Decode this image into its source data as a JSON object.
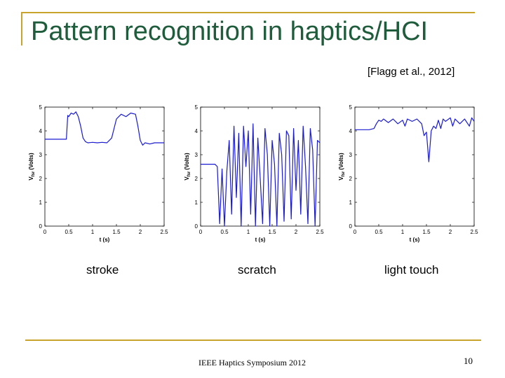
{
  "slide": {
    "title": "Pattern recognition in haptics/HCI",
    "citation": "[Flagg et al., 2012]",
    "footer": "IEEE Haptics Symposium 2012",
    "page_number": "10",
    "accent_color": "#c8a42c",
    "title_color": "#1f5c3c"
  },
  "captions": [
    "stroke",
    "scratch",
    "light touch"
  ],
  "chart_data": [
    {
      "type": "line",
      "xlabel": "t (s)",
      "ylabel": "V",
      "ylabel_sub": "fsr",
      "ylabel_unit": "(Volts)",
      "xlim": [
        0,
        2.5
      ],
      "ylim": [
        0,
        5
      ],
      "xticks": [
        "0",
        "0.5",
        "1",
        "1.5",
        "2",
        "2.5"
      ],
      "yticks": [
        "0",
        "1",
        "2",
        "3",
        "4",
        "5"
      ],
      "line_color": "#1a1ad0",
      "x": [
        0,
        0.45,
        0.48,
        0.5,
        0.55,
        0.6,
        0.65,
        0.7,
        0.75,
        0.8,
        0.85,
        0.9,
        1.0,
        1.1,
        1.2,
        1.3,
        1.4,
        1.45,
        1.5,
        1.55,
        1.6,
        1.7,
        1.8,
        1.9,
        1.95,
        2.0,
        2.05,
        2.1,
        2.2,
        2.3,
        2.4,
        2.5
      ],
      "y": [
        3.65,
        3.65,
        4.65,
        4.6,
        4.75,
        4.7,
        4.8,
        4.6,
        4.2,
        3.7,
        3.55,
        3.5,
        3.52,
        3.5,
        3.52,
        3.5,
        3.7,
        4.1,
        4.5,
        4.6,
        4.7,
        4.6,
        4.75,
        4.7,
        4.2,
        3.6,
        3.4,
        3.5,
        3.45,
        3.5,
        3.5,
        3.5
      ]
    },
    {
      "type": "line",
      "xlabel": "t (s)",
      "ylabel": "V",
      "ylabel_sub": "fsr",
      "ylabel_unit": "(Volts)",
      "xlim": [
        0,
        2.5
      ],
      "ylim": [
        0,
        5
      ],
      "xticks": [
        "0",
        "0.5",
        "1",
        "1.5",
        "2",
        "2.5"
      ],
      "yticks": [
        "0",
        "1",
        "2",
        "3",
        "4",
        "5"
      ],
      "line_color": "#1a1ad0",
      "x": [
        0,
        0.3,
        0.35,
        0.4,
        0.45,
        0.5,
        0.55,
        0.6,
        0.65,
        0.7,
        0.75,
        0.8,
        0.85,
        0.9,
        0.95,
        1.0,
        1.05,
        1.1,
        1.15,
        1.2,
        1.25,
        1.3,
        1.35,
        1.4,
        1.45,
        1.5,
        1.55,
        1.6,
        1.65,
        1.7,
        1.75,
        1.8,
        1.85,
        1.9,
        1.95,
        2.0,
        2.05,
        2.1,
        2.15,
        2.2,
        2.25,
        2.3,
        2.35,
        2.4,
        2.45,
        2.5
      ],
      "y": [
        2.6,
        2.6,
        2.5,
        0.1,
        2.4,
        0.0,
        2.3,
        3.6,
        0.5,
        4.2,
        1.2,
        3.9,
        0.0,
        4.2,
        2.5,
        4.0,
        0.5,
        4.3,
        0.0,
        3.7,
        2.0,
        0.1,
        4.1,
        3.0,
        0.0,
        3.6,
        2.6,
        0.0,
        3.9,
        3.0,
        0.2,
        4.0,
        3.8,
        0.3,
        4.1,
        1.5,
        3.6,
        0.5,
        4.2,
        2.5,
        0.1,
        4.1,
        3.2,
        0.0,
        3.6,
        3.5
      ]
    },
    {
      "type": "line",
      "xlabel": "t (s)",
      "ylabel": "V",
      "ylabel_sub": "fsr",
      "ylabel_unit": "(Volts)",
      "xlim": [
        0,
        2.5
      ],
      "ylim": [
        0,
        5
      ],
      "xticks": [
        "0",
        "0.5",
        "1",
        "1.5",
        "2",
        "2.5"
      ],
      "yticks": [
        "0",
        "1",
        "2",
        "3",
        "4",
        "5"
      ],
      "line_color": "#1a1ad0",
      "x": [
        0,
        0.3,
        0.4,
        0.45,
        0.5,
        0.55,
        0.6,
        0.7,
        0.8,
        0.9,
        1.0,
        1.05,
        1.1,
        1.2,
        1.3,
        1.4,
        1.45,
        1.5,
        1.55,
        1.6,
        1.65,
        1.7,
        1.75,
        1.8,
        1.85,
        1.9,
        2.0,
        2.05,
        2.1,
        2.2,
        2.3,
        2.4,
        2.45,
        2.5
      ],
      "y": [
        4.05,
        4.05,
        4.1,
        4.3,
        4.45,
        4.4,
        4.5,
        4.35,
        4.5,
        4.3,
        4.45,
        4.2,
        4.5,
        4.4,
        4.5,
        4.3,
        3.8,
        3.95,
        2.7,
        4.0,
        4.2,
        4.1,
        4.45,
        4.1,
        4.5,
        4.4,
        4.55,
        4.2,
        4.5,
        4.3,
        4.5,
        4.2,
        4.55,
        4.4
      ]
    }
  ]
}
